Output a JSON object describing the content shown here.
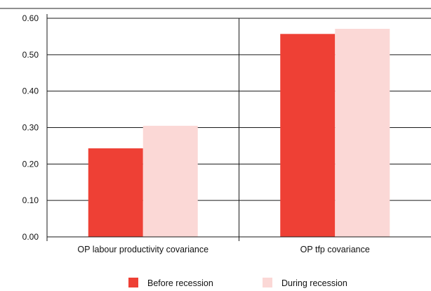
{
  "chart_data": {
    "type": "bar",
    "title": "",
    "xlabel": "",
    "ylabel": "",
    "categories": [
      "OP labour productivity covariance",
      "OP tfp covariance"
    ],
    "series": [
      {
        "name": "Before recession",
        "values": [
          0.243,
          0.557
        ],
        "color": "#ee4035"
      },
      {
        "name": "During recession",
        "values": [
          0.305,
          0.571
        ],
        "color": "#fbd8d6"
      }
    ],
    "ylim": [
      0,
      0.6
    ],
    "yticks": [
      "0.00",
      "0.10",
      "0.20",
      "0.30",
      "0.40",
      "0.50",
      "0.60"
    ],
    "grid": true,
    "legend_position": "bottom"
  }
}
